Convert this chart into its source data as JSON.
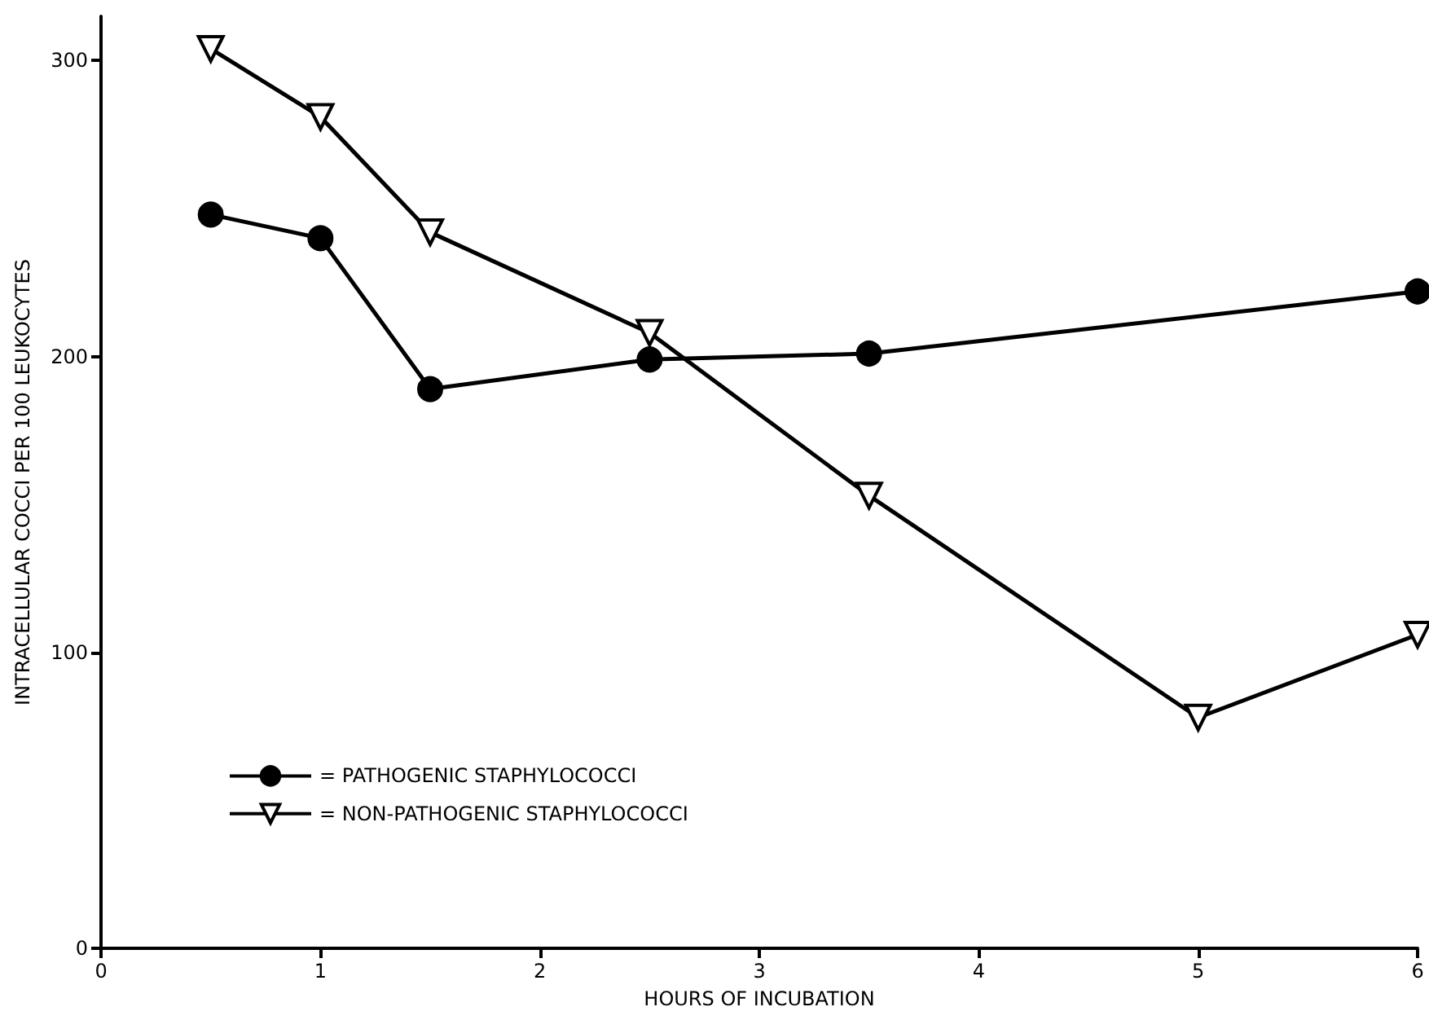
{
  "chart_data": {
    "type": "line",
    "xlabel": "HOURS OF INCUBATION",
    "ylabel": "INTRACELLULAR COCCI PER 100 LEUKOCYTES",
    "xlim": [
      0,
      6
    ],
    "xticks": [
      0,
      1,
      2,
      3,
      4,
      5,
      6
    ],
    "ylim": [
      0,
      315
    ],
    "yticks": [
      0,
      100,
      200,
      300
    ],
    "grid": false,
    "legend": "bottom left",
    "line_style": "solid",
    "series": [
      {
        "name": "= PATHOGENIC STAPHYLOCOCCI",
        "color": "#000000",
        "marker": "circle",
        "x": [
          0.5,
          1,
          1.5,
          2.5,
          3.5,
          6
        ],
        "values": [
          248,
          240,
          189,
          199,
          201,
          222
        ]
      },
      {
        "name": "= NON-PATHOGENIC STAPHYLOCOCCI",
        "color": "#000000",
        "marker": "triangle",
        "x": [
          0.5,
          1,
          1.5,
          2.5,
          3.5,
          5,
          6
        ],
        "values": [
          304,
          281,
          242,
          208,
          153,
          78,
          106
        ]
      }
    ]
  }
}
